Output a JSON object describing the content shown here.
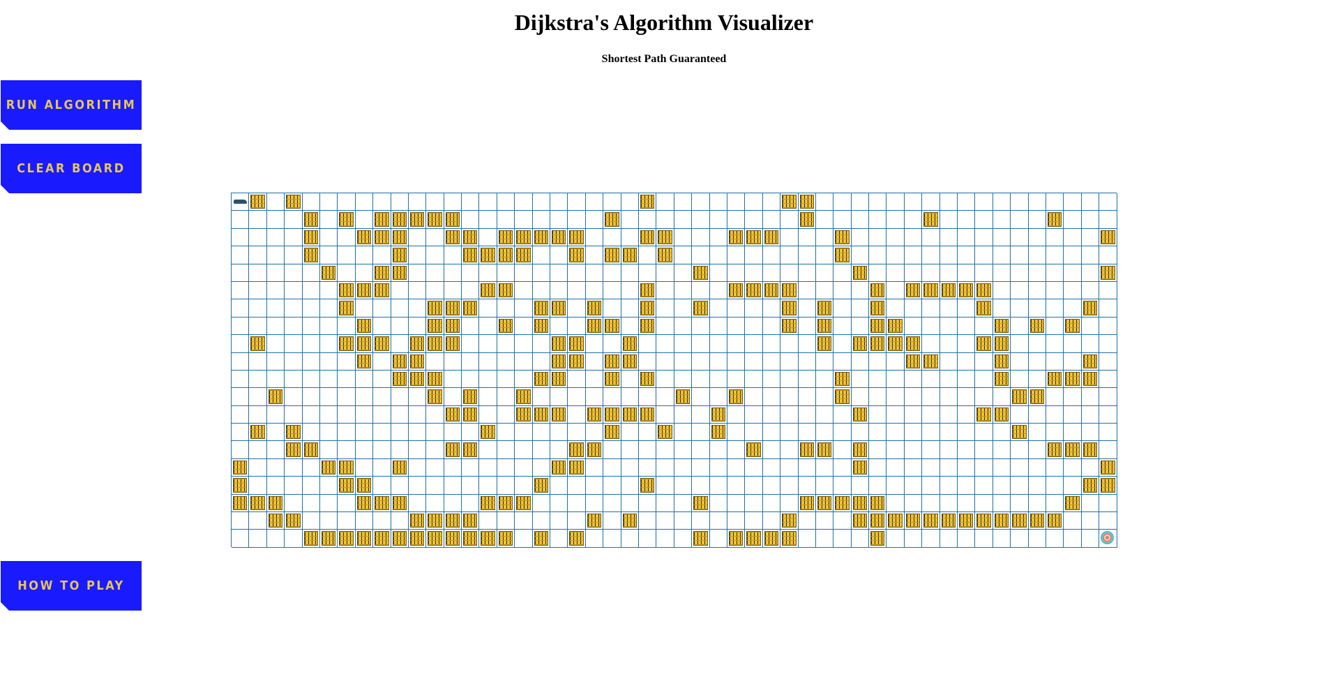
{
  "header": {
    "title": "Dijkstra's Algorithm Visualizer",
    "subtitle": "Shortest Path Guaranteed"
  },
  "controls": {
    "run_label": "RUN ALGORITHM",
    "clear_label": "CLEAR BOARD",
    "help_label": "HOW TO PLAY"
  },
  "colors": {
    "button_bg": "#1a1aff",
    "button_text": "#e6c55a",
    "grid_line": "#1f6fa8",
    "wall": "#f1c232"
  },
  "grid": {
    "rows": 20,
    "cols": 50,
    "start": [
      0,
      0
    ],
    "target": [
      19,
      49
    ],
    "walls": [
      [
        0,
        1
      ],
      [
        0,
        3
      ],
      [
        0,
        23
      ],
      [
        0,
        31
      ],
      [
        0,
        32
      ],
      [
        1,
        4
      ],
      [
        1,
        6
      ],
      [
        1,
        8
      ],
      [
        1,
        9
      ],
      [
        1,
        10
      ],
      [
        1,
        11
      ],
      [
        1,
        12
      ],
      [
        1,
        21
      ],
      [
        1,
        32
      ],
      [
        1,
        39
      ],
      [
        1,
        46
      ],
      [
        2,
        4
      ],
      [
        2,
        7
      ],
      [
        2,
        8
      ],
      [
        2,
        9
      ],
      [
        2,
        12
      ],
      [
        2,
        13
      ],
      [
        2,
        15
      ],
      [
        2,
        16
      ],
      [
        2,
        17
      ],
      [
        2,
        18
      ],
      [
        2,
        19
      ],
      [
        2,
        23
      ],
      [
        2,
        24
      ],
      [
        2,
        28
      ],
      [
        2,
        29
      ],
      [
        2,
        30
      ],
      [
        2,
        34
      ],
      [
        2,
        49
      ],
      [
        3,
        4
      ],
      [
        3,
        9
      ],
      [
        3,
        13
      ],
      [
        3,
        14
      ],
      [
        3,
        15
      ],
      [
        3,
        16
      ],
      [
        3,
        19
      ],
      [
        3,
        21
      ],
      [
        3,
        22
      ],
      [
        3,
        24
      ],
      [
        3,
        34
      ],
      [
        4,
        5
      ],
      [
        4,
        8
      ],
      [
        4,
        9
      ],
      [
        4,
        26
      ],
      [
        4,
        35
      ],
      [
        4,
        49
      ],
      [
        5,
        6
      ],
      [
        5,
        7
      ],
      [
        5,
        8
      ],
      [
        5,
        14
      ],
      [
        5,
        15
      ],
      [
        5,
        23
      ],
      [
        5,
        28
      ],
      [
        5,
        29
      ],
      [
        5,
        30
      ],
      [
        5,
        31
      ],
      [
        5,
        36
      ],
      [
        5,
        38
      ],
      [
        5,
        39
      ],
      [
        5,
        40
      ],
      [
        5,
        41
      ],
      [
        5,
        42
      ],
      [
        6,
        6
      ],
      [
        6,
        11
      ],
      [
        6,
        12
      ],
      [
        6,
        13
      ],
      [
        6,
        17
      ],
      [
        6,
        18
      ],
      [
        6,
        20
      ],
      [
        6,
        23
      ],
      [
        6,
        26
      ],
      [
        6,
        31
      ],
      [
        6,
        33
      ],
      [
        6,
        36
      ],
      [
        6,
        42
      ],
      [
        6,
        48
      ],
      [
        7,
        7
      ],
      [
        7,
        11
      ],
      [
        7,
        12
      ],
      [
        7,
        15
      ],
      [
        7,
        17
      ],
      [
        7,
        20
      ],
      [
        7,
        21
      ],
      [
        7,
        23
      ],
      [
        7,
        31
      ],
      [
        7,
        33
      ],
      [
        7,
        36
      ],
      [
        7,
        37
      ],
      [
        7,
        43
      ],
      [
        7,
        45
      ],
      [
        7,
        47
      ],
      [
        8,
        1
      ],
      [
        8,
        6
      ],
      [
        8,
        7
      ],
      [
        8,
        8
      ],
      [
        8,
        10
      ],
      [
        8,
        11
      ],
      [
        8,
        12
      ],
      [
        8,
        18
      ],
      [
        8,
        19
      ],
      [
        8,
        22
      ],
      [
        8,
        33
      ],
      [
        8,
        35
      ],
      [
        8,
        36
      ],
      [
        8,
        37
      ],
      [
        8,
        38
      ],
      [
        8,
        42
      ],
      [
        8,
        43
      ],
      [
        9,
        7
      ],
      [
        9,
        9
      ],
      [
        9,
        10
      ],
      [
        9,
        18
      ],
      [
        9,
        19
      ],
      [
        9,
        21
      ],
      [
        9,
        22
      ],
      [
        9,
        38
      ],
      [
        9,
        39
      ],
      [
        9,
        43
      ],
      [
        9,
        48
      ],
      [
        10,
        9
      ],
      [
        10,
        10
      ],
      [
        10,
        11
      ],
      [
        10,
        17
      ],
      [
        10,
        18
      ],
      [
        10,
        21
      ],
      [
        10,
        23
      ],
      [
        10,
        34
      ],
      [
        10,
        43
      ],
      [
        10,
        46
      ],
      [
        10,
        47
      ],
      [
        10,
        48
      ],
      [
        11,
        2
      ],
      [
        11,
        11
      ],
      [
        11,
        13
      ],
      [
        11,
        16
      ],
      [
        11,
        25
      ],
      [
        11,
        28
      ],
      [
        11,
        34
      ],
      [
        11,
        44
      ],
      [
        11,
        45
      ],
      [
        12,
        12
      ],
      [
        12,
        13
      ],
      [
        12,
        16
      ],
      [
        12,
        17
      ],
      [
        12,
        18
      ],
      [
        12,
        20
      ],
      [
        12,
        21
      ],
      [
        12,
        22
      ],
      [
        12,
        23
      ],
      [
        12,
        27
      ],
      [
        12,
        35
      ],
      [
        12,
        42
      ],
      [
        12,
        43
      ],
      [
        13,
        1
      ],
      [
        13,
        3
      ],
      [
        13,
        14
      ],
      [
        13,
        21
      ],
      [
        13,
        24
      ],
      [
        13,
        27
      ],
      [
        13,
        44
      ],
      [
        14,
        3
      ],
      [
        14,
        4
      ],
      [
        14,
        12
      ],
      [
        14,
        13
      ],
      [
        14,
        19
      ],
      [
        14,
        20
      ],
      [
        14,
        29
      ],
      [
        14,
        32
      ],
      [
        14,
        33
      ],
      [
        14,
        35
      ],
      [
        14,
        46
      ],
      [
        14,
        47
      ],
      [
        14,
        48
      ],
      [
        15,
        0
      ],
      [
        15,
        5
      ],
      [
        15,
        6
      ],
      [
        15,
        9
      ],
      [
        15,
        18
      ],
      [
        15,
        19
      ],
      [
        15,
        35
      ],
      [
        15,
        49
      ],
      [
        16,
        0
      ],
      [
        16,
        6
      ],
      [
        16,
        7
      ],
      [
        16,
        17
      ],
      [
        16,
        23
      ],
      [
        16,
        48
      ],
      [
        16,
        49
      ],
      [
        17,
        0
      ],
      [
        17,
        1
      ],
      [
        17,
        2
      ],
      [
        17,
        7
      ],
      [
        17,
        8
      ],
      [
        17,
        9
      ],
      [
        17,
        14
      ],
      [
        17,
        15
      ],
      [
        17,
        16
      ],
      [
        17,
        26
      ],
      [
        17,
        32
      ],
      [
        17,
        33
      ],
      [
        17,
        34
      ],
      [
        17,
        35
      ],
      [
        17,
        36
      ],
      [
        17,
        47
      ],
      [
        18,
        2
      ],
      [
        18,
        3
      ],
      [
        18,
        10
      ],
      [
        18,
        11
      ],
      [
        18,
        12
      ],
      [
        18,
        13
      ],
      [
        18,
        20
      ],
      [
        18,
        22
      ],
      [
        18,
        31
      ],
      [
        18,
        35
      ],
      [
        18,
        36
      ],
      [
        18,
        37
      ],
      [
        18,
        38
      ],
      [
        18,
        39
      ],
      [
        18,
        40
      ],
      [
        18,
        41
      ],
      [
        18,
        42
      ],
      [
        18,
        43
      ],
      [
        18,
        44
      ],
      [
        18,
        45
      ],
      [
        18,
        46
      ],
      [
        19,
        4
      ],
      [
        19,
        5
      ],
      [
        19,
        6
      ],
      [
        19,
        7
      ],
      [
        19,
        8
      ],
      [
        19,
        9
      ],
      [
        19,
        10
      ],
      [
        19,
        11
      ],
      [
        19,
        12
      ],
      [
        19,
        13
      ],
      [
        19,
        14
      ],
      [
        19,
        15
      ],
      [
        19,
        17
      ],
      [
        19,
        19
      ],
      [
        19,
        26
      ],
      [
        19,
        28
      ],
      [
        19,
        29
      ],
      [
        19,
        30
      ],
      [
        19,
        31
      ],
      [
        19,
        36
      ]
    ]
  }
}
